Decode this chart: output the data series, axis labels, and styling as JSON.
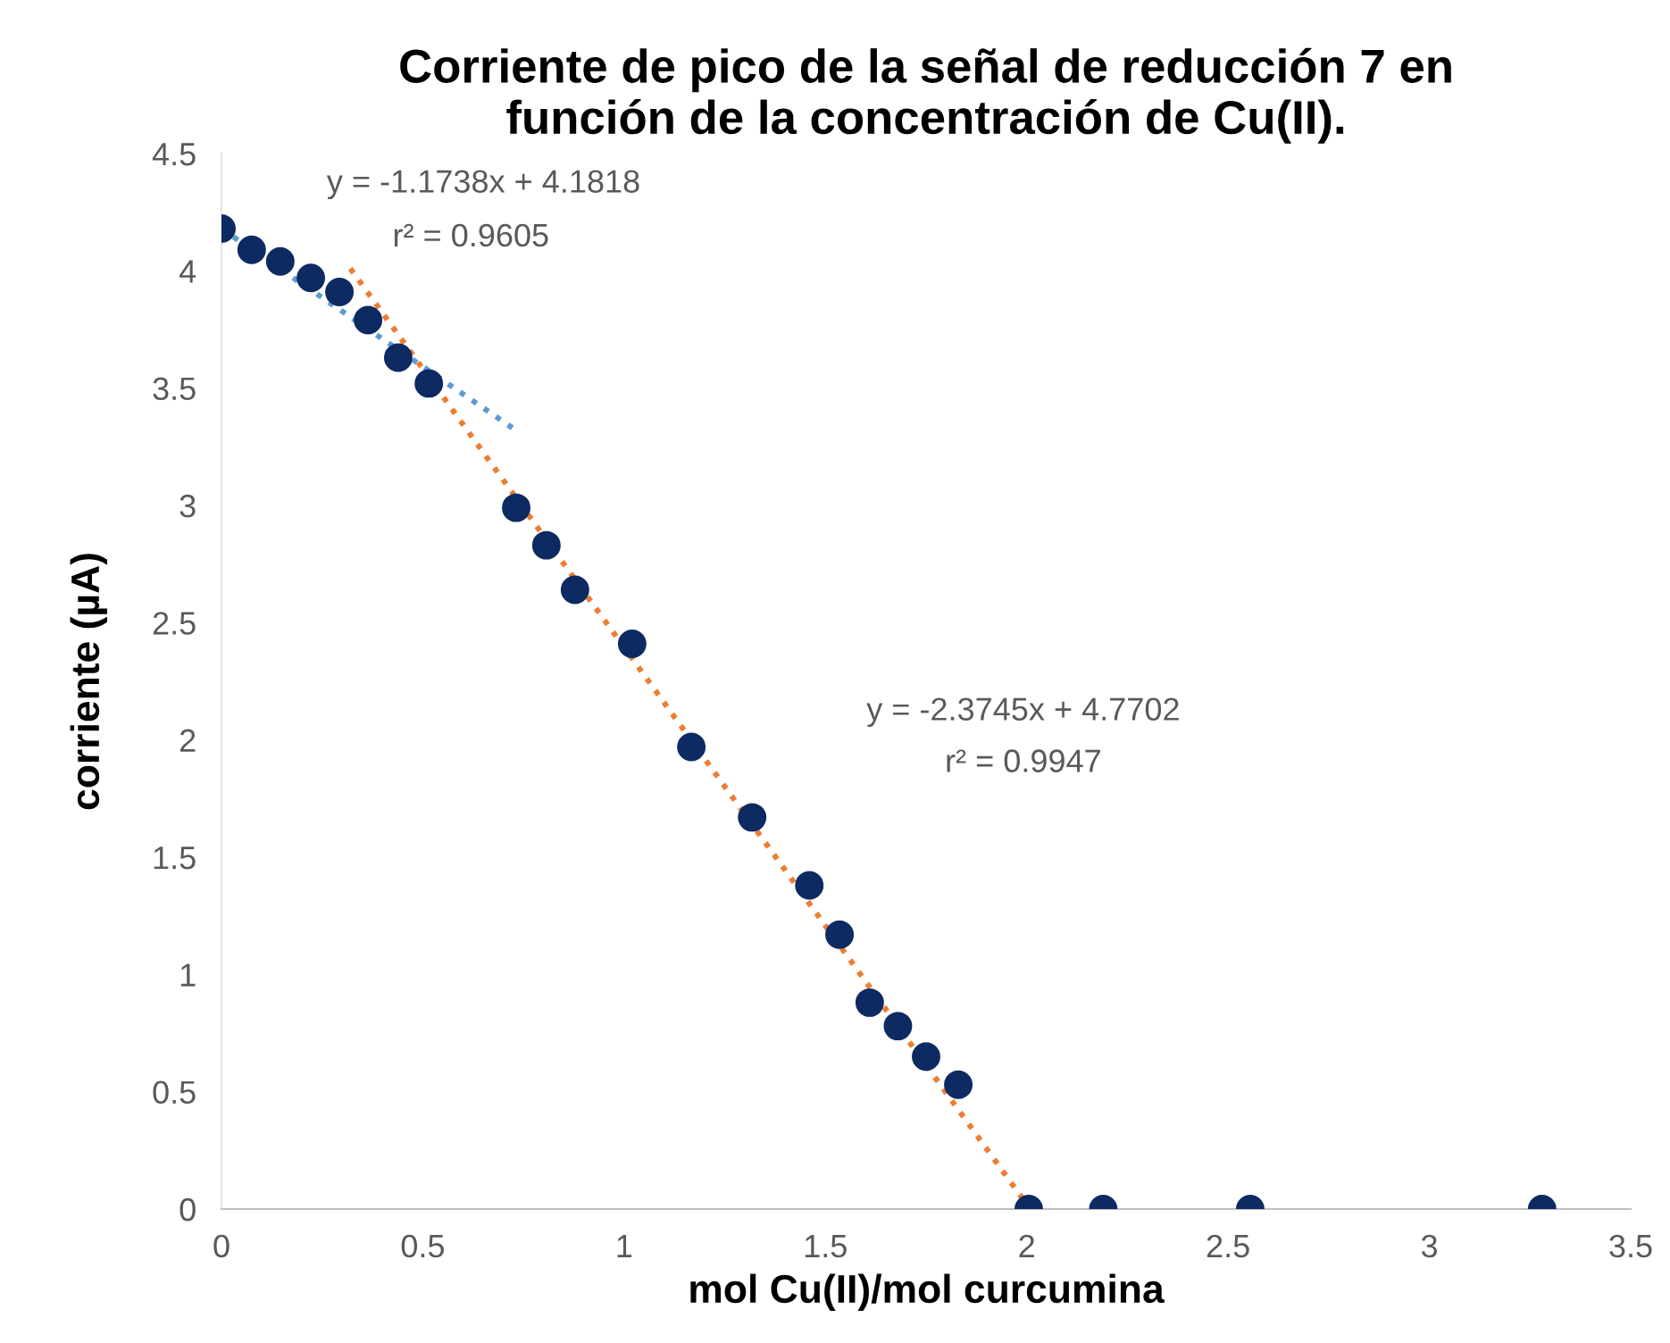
{
  "chart_data": {
    "type": "scatter",
    "title": "Corriente de pico de la señal de reducción 7 en\nfunción de la concentración de Cu(II).",
    "xlabel": "mol Cu(II)/mol curcumina",
    "ylabel": "corriente (µA)",
    "xlim": [
      0,
      3.5
    ],
    "xticks": [
      0,
      0.5,
      1,
      1.5,
      2,
      2.5,
      3,
      3.5
    ],
    "ylim": [
      0,
      4.5
    ],
    "yticks": [
      0,
      0.5,
      1,
      1.5,
      2,
      2.5,
      3,
      3.5,
      4,
      4.5
    ],
    "marker": "circle",
    "grid": false,
    "series": [
      {
        "color": "#0d2a62",
        "x": [
          0,
          0.075,
          0.146,
          0.222,
          0.293,
          0.364,
          0.439,
          0.515,
          0.732,
          0.807,
          0.878,
          1.02,
          1.167,
          1.318,
          1.46,
          1.535,
          1.61,
          1.68,
          1.75,
          1.83,
          2.005,
          2.19,
          2.555,
          3.28
        ],
        "values": [
          4.18,
          4.09,
          4.04,
          3.97,
          3.91,
          3.79,
          3.63,
          3.52,
          2.99,
          2.83,
          2.64,
          2.41,
          1.97,
          1.67,
          1.38,
          1.17,
          0.88,
          0.78,
          0.65,
          0.53,
          0,
          0,
          0,
          0
        ]
      },
      {
        "type": "line",
        "color": "#5b9bd5",
        "line_style": "dotted",
        "marker": "none",
        "x": [
          0,
          0.74
        ],
        "values": [
          4.18,
          3.31
        ]
      },
      {
        "type": "line",
        "color": "#ed7d31",
        "line_style": "dotted",
        "marker": "none",
        "x": [
          0.32,
          2.0
        ],
        "values": [
          4.01,
          0.02
        ]
      }
    ],
    "annotations": [
      "y = -1.1738x + 4.1818",
      "r² = 0.9605",
      "y = -2.3745x + 4.7702",
      "r² = 0.9947"
    ]
  }
}
